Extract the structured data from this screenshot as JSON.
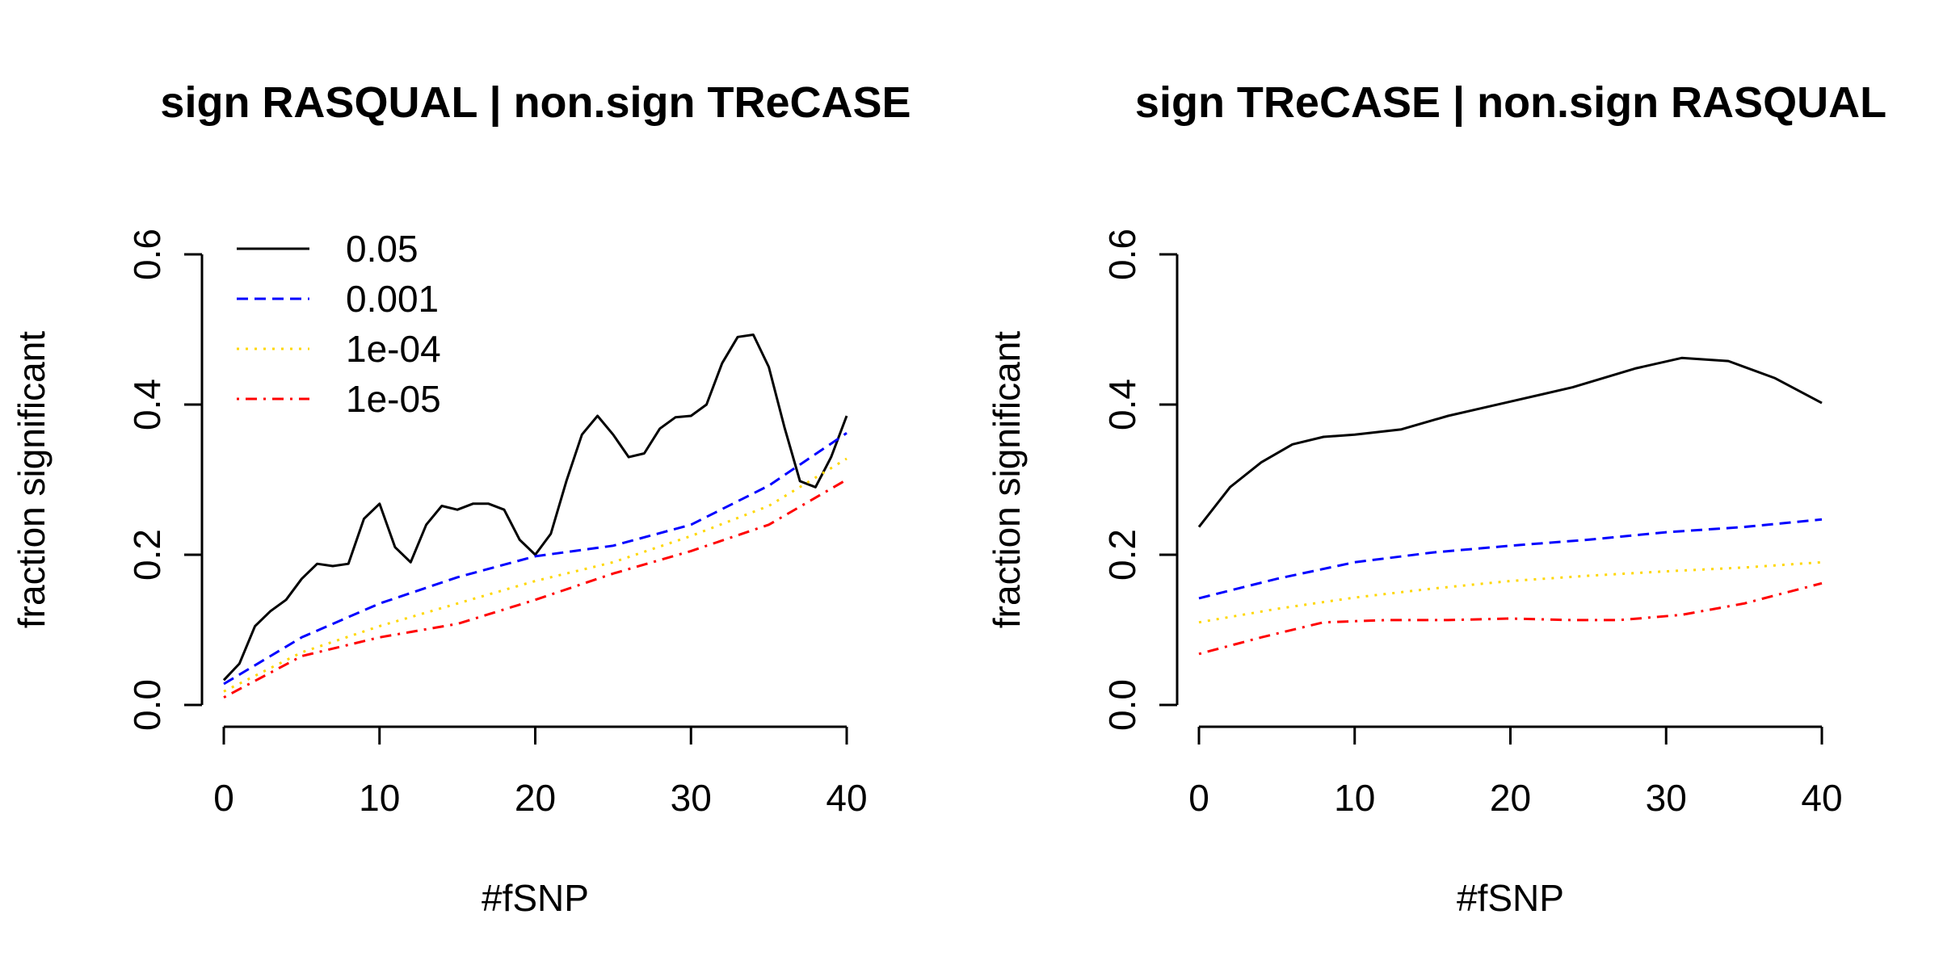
{
  "chart_data": [
    {
      "type": "line",
      "title": "sign RASQUAL | non.sign TReCASE",
      "xlabel": "#fSNP",
      "ylabel": "fraction significant",
      "xlim": [
        0,
        40
      ],
      "ylim": [
        0,
        0.6
      ],
      "xticks": [
        "0",
        "10",
        "20",
        "30",
        "40"
      ],
      "yticks": [
        "0.0",
        "0.2",
        "0.4",
        "0.6"
      ],
      "legend": {
        "position": "top-left",
        "entries": [
          "0.05",
          "0.001",
          "1e-04",
          "1e-05"
        ]
      },
      "series": [
        {
          "name": "0.05",
          "color": "#000000",
          "dash": "solid",
          "x": [
            0,
            1,
            2,
            3,
            4,
            5,
            6,
            7,
            8,
            9,
            10,
            11,
            12,
            13,
            14,
            15,
            16,
            17,
            18,
            19,
            20,
            21,
            22,
            23,
            24,
            25,
            26,
            27,
            28,
            29,
            30,
            31,
            32,
            33,
            34,
            35,
            36,
            37,
            38,
            39,
            40
          ],
          "y": [
            0.033,
            0.055,
            0.105,
            0.125,
            0.14,
            0.168,
            0.188,
            0.185,
            0.188,
            0.248,
            0.268,
            0.21,
            0.19,
            0.24,
            0.265,
            0.26,
            0.268,
            0.268,
            0.26,
            0.22,
            0.2,
            0.228,
            0.298,
            0.36,
            0.385,
            0.36,
            0.33,
            0.335,
            0.368,
            0.383,
            0.385,
            0.4,
            0.455,
            0.49,
            0.493,
            0.45,
            0.37,
            0.298,
            0.29,
            0.33,
            0.385
          ]
        },
        {
          "name": "0.001",
          "color": "#0000FF",
          "dash": "dashed",
          "x": [
            0,
            5,
            10,
            15,
            20,
            25,
            30,
            35,
            40
          ],
          "y": [
            0.028,
            0.09,
            0.135,
            0.17,
            0.198,
            0.212,
            0.24,
            0.292,
            0.362
          ]
        },
        {
          "name": "1e-04",
          "color": "#FFD700",
          "dash": "dotted",
          "x": [
            0,
            5,
            10,
            15,
            20,
            25,
            30,
            35,
            40
          ],
          "y": [
            0.018,
            0.07,
            0.105,
            0.135,
            0.165,
            0.19,
            0.225,
            0.265,
            0.328
          ]
        },
        {
          "name": "1e-05",
          "color": "#FF0000",
          "dash": "dotdash",
          "x": [
            0,
            5,
            10,
            15,
            20,
            25,
            30,
            35,
            40
          ],
          "y": [
            0.01,
            0.065,
            0.09,
            0.108,
            0.14,
            0.175,
            0.205,
            0.24,
            0.3
          ]
        }
      ]
    },
    {
      "type": "line",
      "title": "sign TReCASE | non.sign RASQUAL",
      "xlabel": "#fSNP",
      "ylabel": "fraction significant",
      "xlim": [
        0,
        40
      ],
      "ylim": [
        0,
        0.6
      ],
      "xticks": [
        "0",
        "10",
        "20",
        "30",
        "40"
      ],
      "yticks": [
        "0.0",
        "0.2",
        "0.4",
        "0.6"
      ],
      "series": [
        {
          "name": "0.05",
          "color": "#000000",
          "dash": "solid",
          "x": [
            0,
            2,
            4,
            6,
            8,
            10,
            13,
            16,
            20,
            24,
            28,
            31,
            34,
            37,
            40
          ],
          "y": [
            0.237,
            0.29,
            0.323,
            0.347,
            0.357,
            0.36,
            0.367,
            0.385,
            0.404,
            0.423,
            0.448,
            0.462,
            0.458,
            0.435,
            0.402
          ]
        },
        {
          "name": "0.001",
          "color": "#0000FF",
          "dash": "dashed",
          "x": [
            0,
            5,
            10,
            15,
            20,
            25,
            30,
            35,
            40
          ],
          "y": [
            0.142,
            0.168,
            0.19,
            0.203,
            0.212,
            0.22,
            0.23,
            0.237,
            0.247
          ]
        },
        {
          "name": "1e-04",
          "color": "#FFD700",
          "dash": "dotted",
          "x": [
            0,
            5,
            10,
            15,
            20,
            25,
            30,
            35,
            40
          ],
          "y": [
            0.11,
            0.128,
            0.143,
            0.155,
            0.165,
            0.172,
            0.178,
            0.183,
            0.19
          ]
        },
        {
          "name": "1e-05",
          "color": "#FF0000",
          "dash": "dotdash",
          "x": [
            0,
            4,
            8,
            12,
            16,
            20,
            24,
            27,
            31,
            35,
            40
          ],
          "y": [
            0.068,
            0.09,
            0.11,
            0.113,
            0.113,
            0.115,
            0.113,
            0.113,
            0.12,
            0.135,
            0.162
          ]
        }
      ]
    }
  ]
}
